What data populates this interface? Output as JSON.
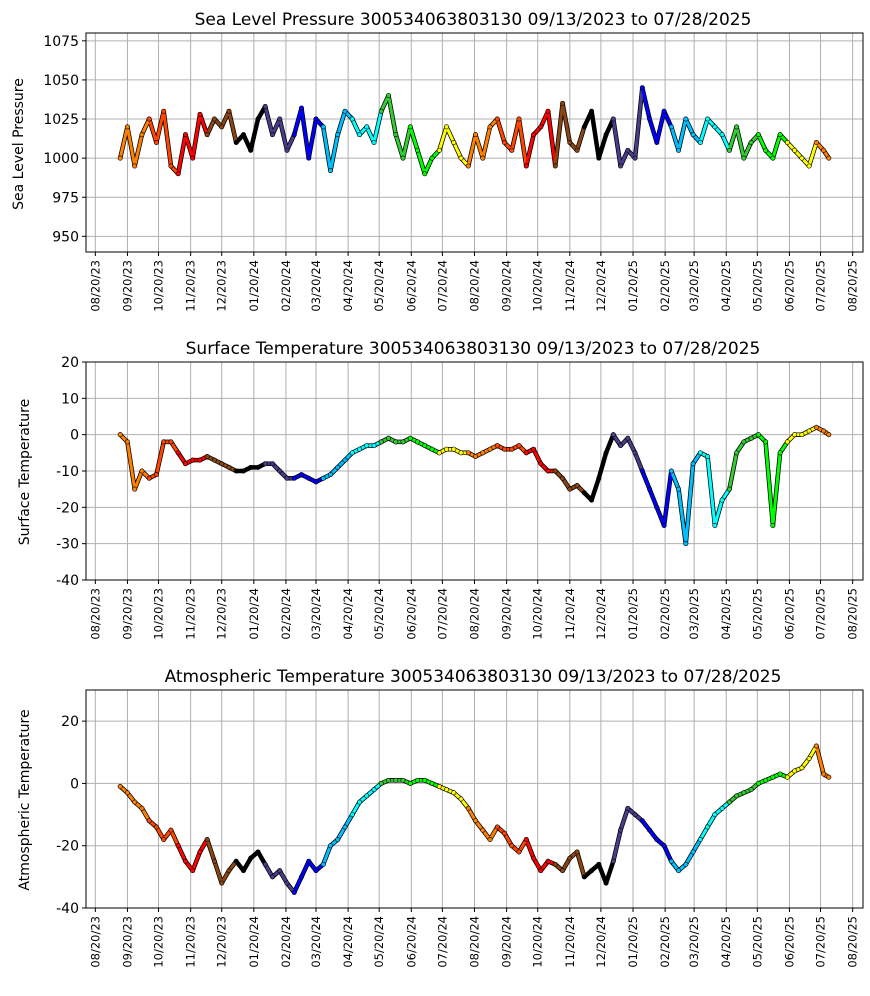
{
  "chart_data": [
    {
      "type": "scatter",
      "title": "Sea Level Pressure 300534063803130  09/13/2023 to 07/28/2025",
      "xlabel": "",
      "ylabel": "Sea Level Pressure",
      "ylim": [
        940,
        1080
      ],
      "yticks": [
        950,
        975,
        1000,
        1025,
        1050,
        1075
      ],
      "grid": true,
      "x_range": [
        "2023-08-11",
        "2025-08-30"
      ],
      "xtick_labels": [
        "08/20/23",
        "09/20/23",
        "10/20/23",
        "11/20/23",
        "12/20/23",
        "01/20/24",
        "02/20/24",
        "03/20/24",
        "04/20/24",
        "05/20/24",
        "06/20/24",
        "07/20/24",
        "08/20/24",
        "09/20/24",
        "10/20/24",
        "11/20/24",
        "12/20/24",
        "01/20/25",
        "02/20/25",
        "03/20/25",
        "04/20/25",
        "05/20/25",
        "06/20/25",
        "07/20/25",
        "08/20/25"
      ],
      "xtick_dates": [
        "2023-08-20",
        "2023-09-20",
        "2023-10-20",
        "2023-11-20",
        "2023-12-20",
        "2024-01-20",
        "2024-02-20",
        "2024-03-20",
        "2024-04-20",
        "2024-05-20",
        "2024-06-20",
        "2024-07-20",
        "2024-08-20",
        "2024-09-20",
        "2024-10-20",
        "2024-11-20",
        "2024-12-20",
        "2025-01-20",
        "2025-02-20",
        "2025-03-20",
        "2025-04-20",
        "2025-05-20",
        "2025-06-20",
        "2025-07-20",
        "2025-08-20"
      ],
      "x": [
        "2023-09-13",
        "2023-09-20",
        "2023-09-27",
        "2023-10-04",
        "2023-10-11",
        "2023-10-18",
        "2023-10-25",
        "2023-11-01",
        "2023-11-08",
        "2023-11-15",
        "2023-11-22",
        "2023-11-29",
        "2023-12-06",
        "2023-12-13",
        "2023-12-20",
        "2023-12-27",
        "2024-01-03",
        "2024-01-10",
        "2024-01-17",
        "2024-01-24",
        "2024-01-31",
        "2024-02-07",
        "2024-02-14",
        "2024-02-21",
        "2024-02-28",
        "2024-03-06",
        "2024-03-13",
        "2024-03-20",
        "2024-03-27",
        "2024-04-03",
        "2024-04-10",
        "2024-04-17",
        "2024-04-24",
        "2024-05-01",
        "2024-05-08",
        "2024-05-15",
        "2024-05-22",
        "2024-05-29",
        "2024-06-05",
        "2024-06-12",
        "2024-06-19",
        "2024-06-26",
        "2024-07-03",
        "2024-07-10",
        "2024-07-17",
        "2024-07-24",
        "2024-07-31",
        "2024-08-07",
        "2024-08-14",
        "2024-08-21",
        "2024-08-28",
        "2024-09-04",
        "2024-09-11",
        "2024-09-18",
        "2024-09-25",
        "2024-10-02",
        "2024-10-09",
        "2024-10-16",
        "2024-10-23",
        "2024-10-30",
        "2024-11-06",
        "2024-11-13",
        "2024-11-20",
        "2024-11-27",
        "2024-12-04",
        "2024-12-11",
        "2024-12-18",
        "2024-12-25",
        "2025-01-01",
        "2025-01-08",
        "2025-01-15",
        "2025-01-22",
        "2025-01-29",
        "2025-02-05",
        "2025-02-12",
        "2025-02-19",
        "2025-02-26",
        "2025-03-05",
        "2025-03-12",
        "2025-03-19",
        "2025-03-26",
        "2025-04-02",
        "2025-04-09",
        "2025-04-16",
        "2025-04-23",
        "2025-04-30",
        "2025-05-07",
        "2025-05-14",
        "2025-05-21",
        "2025-05-28",
        "2025-06-04",
        "2025-06-11",
        "2025-06-18",
        "2025-06-25",
        "2025-07-02",
        "2025-07-09",
        "2025-07-16",
        "2025-07-23",
        "2025-07-28"
      ],
      "y": [
        1000,
        1020,
        995,
        1015,
        1025,
        1010,
        1030,
        995,
        990,
        1015,
        1000,
        1028,
        1015,
        1025,
        1020,
        1030,
        1010,
        1015,
        1005,
        1025,
        1033,
        1015,
        1025,
        1005,
        1015,
        1032,
        1000,
        1025,
        1020,
        992,
        1015,
        1030,
        1025,
        1015,
        1020,
        1010,
        1030,
        1040,
        1015,
        1000,
        1020,
        1005,
        990,
        1000,
        1005,
        1020,
        1010,
        1000,
        995,
        1015,
        1000,
        1020,
        1025,
        1010,
        1005,
        1025,
        995,
        1015,
        1020,
        1030,
        995,
        1035,
        1010,
        1005,
        1020,
        1030,
        1000,
        1015,
        1025,
        995,
        1005,
        1000,
        1045,
        1025,
        1010,
        1030,
        1020,
        1005,
        1025,
        1015,
        1010,
        1025,
        1020,
        1015,
        1005,
        1020,
        1000,
        1010,
        1015,
        1005,
        1000,
        1015,
        1010,
        1005,
        1000,
        995,
        1010,
        1005,
        1000
      ]
    },
    {
      "type": "scatter",
      "title": "Surface Temperature 300534063803130  09/13/2023 to 07/28/2025",
      "xlabel": "",
      "ylabel": "Surface Temperature",
      "ylim": [
        -40,
        20
      ],
      "yticks": [
        -40,
        -30,
        -20,
        -10,
        0,
        10,
        20
      ],
      "grid": true,
      "x_range": [
        "2023-08-11",
        "2025-08-30"
      ],
      "xtick_labels": [
        "08/20/23",
        "09/20/23",
        "10/20/23",
        "11/20/23",
        "12/20/23",
        "01/20/24",
        "02/20/24",
        "03/20/24",
        "04/20/24",
        "05/20/24",
        "06/20/24",
        "07/20/24",
        "08/20/24",
        "09/20/24",
        "10/20/24",
        "11/20/24",
        "12/20/24",
        "01/20/25",
        "02/20/25",
        "03/20/25",
        "04/20/25",
        "05/20/25",
        "06/20/25",
        "07/20/25",
        "08/20/25"
      ],
      "xtick_dates": [
        "2023-08-20",
        "2023-09-20",
        "2023-10-20",
        "2023-11-20",
        "2023-12-20",
        "2024-01-20",
        "2024-02-20",
        "2024-03-20",
        "2024-04-20",
        "2024-05-20",
        "2024-06-20",
        "2024-07-20",
        "2024-08-20",
        "2024-09-20",
        "2024-10-20",
        "2024-11-20",
        "2024-12-20",
        "2025-01-20",
        "2025-02-20",
        "2025-03-20",
        "2025-04-20",
        "2025-05-20",
        "2025-06-20",
        "2025-07-20",
        "2025-08-20"
      ],
      "x": [
        "2023-09-13",
        "2023-09-20",
        "2023-09-27",
        "2023-10-04",
        "2023-10-11",
        "2023-10-18",
        "2023-10-25",
        "2023-11-01",
        "2023-11-08",
        "2023-11-15",
        "2023-11-22",
        "2023-11-29",
        "2023-12-06",
        "2023-12-13",
        "2023-12-20",
        "2023-12-27",
        "2024-01-03",
        "2024-01-10",
        "2024-01-17",
        "2024-01-24",
        "2024-01-31",
        "2024-02-07",
        "2024-02-14",
        "2024-02-21",
        "2024-02-28",
        "2024-03-06",
        "2024-03-13",
        "2024-03-20",
        "2024-03-27",
        "2024-04-03",
        "2024-04-10",
        "2024-04-17",
        "2024-04-24",
        "2024-05-01",
        "2024-05-08",
        "2024-05-15",
        "2024-05-22",
        "2024-05-29",
        "2024-06-05",
        "2024-06-12",
        "2024-06-19",
        "2024-06-26",
        "2024-07-03",
        "2024-07-10",
        "2024-07-17",
        "2024-07-24",
        "2024-07-31",
        "2024-08-07",
        "2024-08-14",
        "2024-08-21",
        "2024-08-28",
        "2024-09-04",
        "2024-09-11",
        "2024-09-18",
        "2024-09-25",
        "2024-10-02",
        "2024-10-09",
        "2024-10-16",
        "2024-10-23",
        "2024-10-30",
        "2024-11-06",
        "2024-11-13",
        "2024-11-20",
        "2024-11-27",
        "2024-12-04",
        "2024-12-11",
        "2024-12-18",
        "2024-12-25",
        "2025-01-01",
        "2025-01-08",
        "2025-01-15",
        "2025-01-22",
        "2025-01-29",
        "2025-02-05",
        "2025-02-12",
        "2025-02-19",
        "2025-02-26",
        "2025-03-05",
        "2025-03-12",
        "2025-03-19",
        "2025-03-26",
        "2025-04-02",
        "2025-04-09",
        "2025-04-16",
        "2025-04-23",
        "2025-04-30",
        "2025-05-07",
        "2025-05-14",
        "2025-05-21",
        "2025-05-28",
        "2025-06-04",
        "2025-06-11",
        "2025-06-18",
        "2025-06-25",
        "2025-07-02",
        "2025-07-09",
        "2025-07-16",
        "2025-07-23",
        "2025-07-28"
      ],
      "y": [
        0,
        -2,
        -15,
        -10,
        -12,
        -11,
        -2,
        -2,
        -5,
        -8,
        -7,
        -7,
        -6,
        -7,
        -8,
        -9,
        -10,
        -10,
        -9,
        -9,
        -8,
        -8,
        -10,
        -12,
        -12,
        -11,
        -12,
        -13,
        -12,
        -11,
        -9,
        -7,
        -5,
        -4,
        -3,
        -3,
        -2,
        -1,
        -2,
        -2,
        -1,
        -2,
        -3,
        -4,
        -5,
        -4,
        -4,
        -5,
        -5,
        -6,
        -5,
        -4,
        -3,
        -4,
        -4,
        -3,
        -5,
        -4,
        -8,
        -10,
        -10,
        -12,
        -15,
        -14,
        -16,
        -18,
        -12,
        -5,
        0,
        -3,
        -1,
        -5,
        -10,
        -15,
        -20,
        -25,
        -10,
        -15,
        -30,
        -8,
        -5,
        -6,
        -25,
        -18,
        -15,
        -5,
        -2,
        -1,
        0,
        -2,
        -25,
        -5,
        -2,
        0,
        0,
        1,
        2,
        1,
        0
      ]
    },
    {
      "type": "scatter",
      "title": "Atmospheric Temperature 300534063803130  09/13/2023 to 07/28/2025",
      "xlabel": "",
      "ylabel": "Atmospheric Temperature",
      "ylim": [
        -40,
        30
      ],
      "yticks": [
        -40,
        -20,
        0,
        20
      ],
      "grid": true,
      "x_range": [
        "2023-08-11",
        "2025-08-30"
      ],
      "xtick_labels": [
        "08/20/23",
        "09/20/23",
        "10/20/23",
        "11/20/23",
        "12/20/23",
        "01/20/24",
        "02/20/24",
        "03/20/24",
        "04/20/24",
        "05/20/24",
        "06/20/24",
        "07/20/24",
        "08/20/24",
        "09/20/24",
        "10/20/24",
        "11/20/24",
        "12/20/24",
        "01/20/25",
        "02/20/25",
        "03/20/25",
        "04/20/25",
        "05/20/25",
        "06/20/25",
        "07/20/25",
        "08/20/25"
      ],
      "xtick_dates": [
        "2023-08-20",
        "2023-09-20",
        "2023-10-20",
        "2023-11-20",
        "2023-12-20",
        "2024-01-20",
        "2024-02-20",
        "2024-03-20",
        "2024-04-20",
        "2024-05-20",
        "2024-06-20",
        "2024-07-20",
        "2024-08-20",
        "2024-09-20",
        "2024-10-20",
        "2024-11-20",
        "2024-12-20",
        "2025-01-20",
        "2025-02-20",
        "2025-03-20",
        "2025-04-20",
        "2025-05-20",
        "2025-06-20",
        "2025-07-20",
        "2025-08-20"
      ],
      "x": [
        "2023-09-13",
        "2023-09-20",
        "2023-09-27",
        "2023-10-04",
        "2023-10-11",
        "2023-10-18",
        "2023-10-25",
        "2023-11-01",
        "2023-11-08",
        "2023-11-15",
        "2023-11-22",
        "2023-11-29",
        "2023-12-06",
        "2023-12-13",
        "2023-12-20",
        "2023-12-27",
        "2024-01-03",
        "2024-01-10",
        "2024-01-17",
        "2024-01-24",
        "2024-01-31",
        "2024-02-07",
        "2024-02-14",
        "2024-02-21",
        "2024-02-28",
        "2024-03-06",
        "2024-03-13",
        "2024-03-20",
        "2024-03-27",
        "2024-04-03",
        "2024-04-10",
        "2024-04-17",
        "2024-04-24",
        "2024-05-01",
        "2024-05-08",
        "2024-05-15",
        "2024-05-22",
        "2024-05-29",
        "2024-06-05",
        "2024-06-12",
        "2024-06-19",
        "2024-06-26",
        "2024-07-03",
        "2024-07-10",
        "2024-07-17",
        "2024-07-24",
        "2024-07-31",
        "2024-08-07",
        "2024-08-14",
        "2024-08-21",
        "2024-08-28",
        "2024-09-04",
        "2024-09-11",
        "2024-09-18",
        "2024-09-25",
        "2024-10-02",
        "2024-10-09",
        "2024-10-16",
        "2024-10-23",
        "2024-10-30",
        "2024-11-06",
        "2024-11-13",
        "2024-11-20",
        "2024-11-27",
        "2024-12-04",
        "2024-12-11",
        "2024-12-18",
        "2024-12-25",
        "2025-01-01",
        "2025-01-08",
        "2025-01-15",
        "2025-01-22",
        "2025-01-29",
        "2025-02-05",
        "2025-02-12",
        "2025-02-19",
        "2025-02-26",
        "2025-03-05",
        "2025-03-12",
        "2025-03-19",
        "2025-03-26",
        "2025-04-02",
        "2025-04-09",
        "2025-04-16",
        "2025-04-23",
        "2025-04-30",
        "2025-05-07",
        "2025-05-14",
        "2025-05-21",
        "2025-05-28",
        "2025-06-04",
        "2025-06-11",
        "2025-06-18",
        "2025-06-25",
        "2025-07-02",
        "2025-07-09",
        "2025-07-16",
        "2025-07-23",
        "2025-07-28"
      ],
      "y": [
        -1,
        -3,
        -6,
        -8,
        -12,
        -14,
        -18,
        -15,
        -20,
        -25,
        -28,
        -22,
        -18,
        -25,
        -32,
        -28,
        -25,
        -28,
        -24,
        -22,
        -26,
        -30,
        -28,
        -32,
        -35,
        -30,
        -25,
        -28,
        -26,
        -20,
        -18,
        -14,
        -10,
        -6,
        -4,
        -2,
        0,
        1,
        1,
        1,
        0,
        1,
        1,
        0,
        -1,
        -2,
        -3,
        -5,
        -8,
        -12,
        -15,
        -18,
        -14,
        -16,
        -20,
        -22,
        -18,
        -24,
        -28,
        -25,
        -26,
        -28,
        -24,
        -22,
        -30,
        -28,
        -26,
        -32,
        -25,
        -15,
        -8,
        -10,
        -12,
        -15,
        -18,
        -20,
        -25,
        -28,
        -26,
        -22,
        -18,
        -14,
        -10,
        -8,
        -6,
        -4,
        -3,
        -2,
        0,
        1,
        2,
        3,
        2,
        4,
        5,
        8,
        12,
        3,
        2
      ]
    }
  ],
  "colors": {
    "palette": [
      "#ff7f00",
      "#ff4500",
      "#ff0000",
      "#8b4513",
      "#000000",
      "#483d8b",
      "#0000ff",
      "#00bfff",
      "#00ffff",
      "#32cd32",
      "#00ff00",
      "#ffff00"
    ],
    "grid": "#b0b0b0",
    "outline": "#000000"
  }
}
